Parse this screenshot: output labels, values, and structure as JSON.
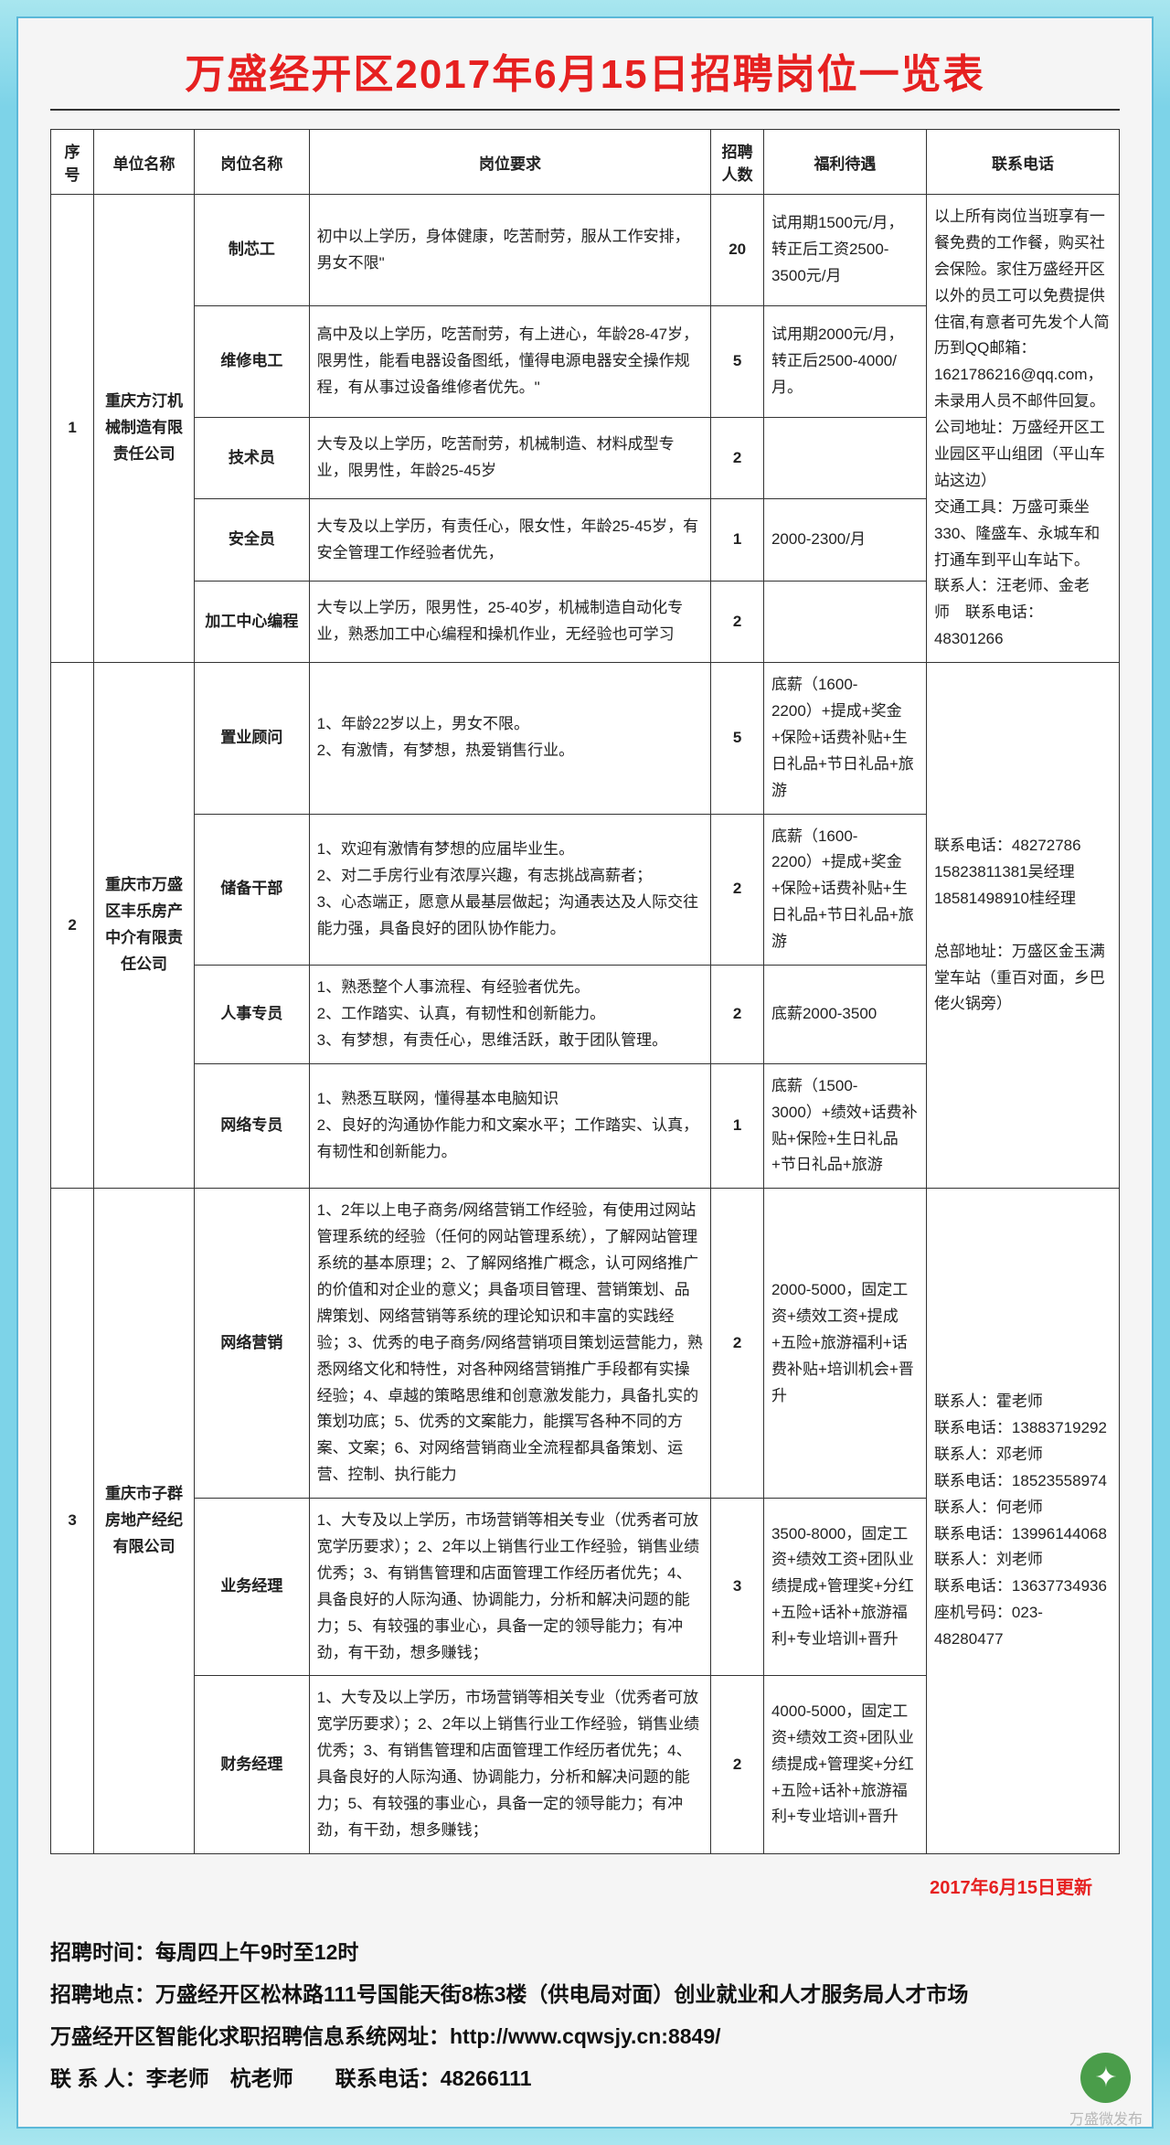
{
  "title": "万盛经开区2017年6月15日招聘岗位一览表",
  "headers": {
    "seq": "序号",
    "company": "单位名称",
    "position": "岗位名称",
    "requirements": "岗位要求",
    "count": "招聘人数",
    "benefits": "福利待遇",
    "contact": "联系电话"
  },
  "groups": [
    {
      "seq": "1",
      "company": "重庆方汀机械制造有限责任公司",
      "contact": "以上所有岗位当班享有一餐免费的工作餐，购买社会保险。家住万盛经开区以外的员工可以免费提供住宿,有意者可先发个人简历到QQ邮箱：1621786216@qq.com，未录用人员不邮件回复。\n公司地址：万盛经开区工业园区平山组团（平山车站这边）\n交通工具：万盛可乘坐330、隆盛车、永城车和打通车到平山车站下。\n联系人：汪老师、金老师 联系电话：48301266",
      "rows": [
        {
          "position": "制芯工",
          "req": "初中以上学历，身体健康，吃苦耐劳，服从工作安排，男女不限\"",
          "count": "20",
          "benefit": "试用期1500元/月，转正后工资2500-3500元/月"
        },
        {
          "position": "维修电工",
          "req": "高中及以上学历，吃苦耐劳，有上进心，年龄28-47岁，限男性，能看电器设备图纸，懂得电源电器安全操作规程，有从事过设备维修者优先。\"",
          "count": "5",
          "benefit": "试用期2000元/月，转正后2500-4000/月。"
        },
        {
          "position": "技术员",
          "req": "大专及以上学历，吃苦耐劳，机械制造、材料成型专业，限男性，年龄25-45岁",
          "count": "2",
          "benefit": ""
        },
        {
          "position": "安全员",
          "req": "大专及以上学历，有责任心，限女性，年龄25-45岁，有安全管理工作经验者优先，",
          "count": "1",
          "benefit": "2000-2300/月"
        },
        {
          "position": "加工中心编程",
          "req": "大专以上学历，限男性，25-40岁，机械制造自动化专业，熟悉加工中心编程和操机作业，无经验也可学习",
          "count": "2",
          "benefit": ""
        }
      ]
    },
    {
      "seq": "2",
      "company": "重庆市万盛区丰乐房产中介有限责任公司",
      "contact": "联系电话：48272786\n15823811381吴经理\n18581498910桂经理\n\n总部地址：万盛区金玉满堂车站（重百对面，乡巴佬火锅旁）",
      "rows": [
        {
          "position": "置业顾问",
          "req": "1、年龄22岁以上，男女不限。\n2、有激情，有梦想，热爱销售行业。",
          "count": "5",
          "benefit": "底薪（1600-2200）+提成+奖金+保险+话费补贴+生日礼品+节日礼品+旅游"
        },
        {
          "position": "储备干部",
          "req": "1、欢迎有激情有梦想的应届毕业生。\n2、对二手房行业有浓厚兴趣，有志挑战高薪者；\n3、心态端正，愿意从最基层做起；沟通表达及人际交往能力强，具备良好的团队协作能力。",
          "count": "2",
          "benefit": "底薪（1600-2200）+提成+奖金+保险+话费补贴+生日礼品+节日礼品+旅游"
        },
        {
          "position": "人事专员",
          "req": "1、熟悉整个人事流程、有经验者优先。\n2、工作踏实、认真，有韧性和创新能力。\n3、有梦想，有责任心，思维活跃，敢于团队管理。",
          "count": "2",
          "benefit": "底薪2000-3500"
        },
        {
          "position": "网络专员",
          "req": "1、熟悉互联网，懂得基本电脑知识\n2、良好的沟通协作能力和文案水平；工作踏实、认真，有韧性和创新能力。",
          "count": "1",
          "benefit": "底薪（1500-3000）+绩效+话费补贴+保险+生日礼品+节日礼品+旅游"
        }
      ]
    },
    {
      "seq": "3",
      "company": "重庆市子群房地产经纪有限公司",
      "contact": "联系人：霍老师\n联系电话：13883719292\n联系人：邓老师\n联系电话：18523558974\n联系人：何老师\n联系电话：13996144068\n联系人：刘老师\n联系电话：13637734936\n座机号码：023-48280477",
      "rows": [
        {
          "position": "网络营销",
          "req": "1、2年以上电子商务/网络营销工作经验，有使用过网站管理系统的经验（任何的网站管理系统），了解网站管理系统的基本原理；2、了解网络推广概念，认可网络推广的价值和对企业的意义；具备项目管理、营销策划、品牌策划、网络营销等系统的理论知识和丰富的实践经验；3、优秀的电子商务/网络营销项目策划运营能力，熟悉网络文化和特性，对各种网络营销推广手段都有实操经验；4、卓越的策略思维和创意激发能力，具备扎实的策划功底；5、优秀的文案能力，能撰写各种不同的方案、文案；6、对网络营销商业全流程都具备策划、运营、控制、执行能力",
          "count": "2",
          "benefit": "2000-5000，固定工资+绩效工资+提成+五险+旅游福利+话费补贴+培训机会+晋升"
        },
        {
          "position": "业务经理",
          "req": "1、大专及以上学历，市场营销等相关专业（优秀者可放宽学历要求）；2、2年以上销售行业工作经验，销售业绩优秀；3、有销售管理和店面管理工作经历者优先；4、具备良好的人际沟通、协调能力，分析和解决问题的能力；5、有较强的事业心，具备一定的领导能力；有冲劲，有干劲，想多赚钱；",
          "count": "3",
          "benefit": "3500-8000，固定工资+绩效工资+团队业绩提成+管理奖+分红+五险+话补+旅游福利+专业培训+晋升"
        },
        {
          "position": "财务经理",
          "req": "1、大专及以上学历，市场营销等相关专业（优秀者可放宽学历要求）；2、2年以上销售行业工作经验，销售业绩优秀；3、有销售管理和店面管理工作经历者优先；4、具备良好的人际沟通、协调能力，分析和解决问题的能力；5、有较强的事业心，具备一定的领导能力；有冲劲，有干劲，想多赚钱；",
          "count": "2",
          "benefit": "4000-5000，固定工资+绩效工资+团队业绩提成+管理奖+分红+五险+话补+旅游福利+专业培训+晋升"
        }
      ]
    }
  ],
  "update_note": "2017年6月15日更新",
  "footer": {
    "line1": "招聘时间：每周四上午9时至12时",
    "line2": "招聘地点：万盛经开区松林路111号国能天街8栋3楼（供电局对面）创业就业和人才服务局人才市场",
    "line3": "万盛经开区智能化求职招聘信息系统网址：http://www.cqwsjy.cn:8849/",
    "line4": "联 系 人：李老师 杭老师  联系电话：48266111"
  },
  "watermark": "万盛微发布"
}
